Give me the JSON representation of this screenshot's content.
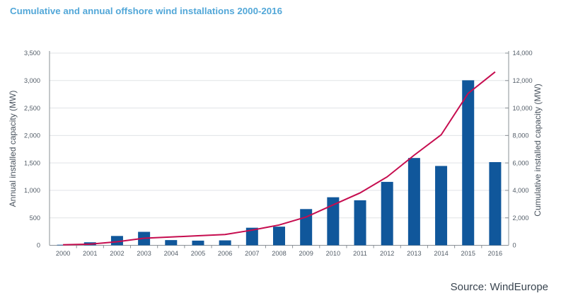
{
  "title": "Cumulative and annual offshore wind installations 2000-2016",
  "source": "Source: WindEurope",
  "colors": {
    "title": "#52a7d8",
    "bar": "#10579b",
    "line": "#c60d4f",
    "text": "#535d68",
    "axis_title_text": "#49535e",
    "grid": "#e0e3e6",
    "axis": "#8a9096",
    "source_text": "#3a4550"
  },
  "chart_data": {
    "type": "bar",
    "categories": [
      "2000",
      "2001",
      "2002",
      "2003",
      "2004",
      "2005",
      "2006",
      "2007",
      "2008",
      "2009",
      "2010",
      "2011",
      "2012",
      "2013",
      "2014",
      "2015",
      "2016"
    ],
    "series": [
      {
        "name": "Annual installed capacity (MW)",
        "type": "bar",
        "axis": "left",
        "values": [
          10,
          55,
          170,
          245,
          95,
          85,
          90,
          320,
          340,
          660,
          875,
          820,
          1155,
          1590,
          1445,
          3005,
          1515
        ]
      },
      {
        "name": "Cumulative installed capacity (MW)",
        "type": "line",
        "axis": "right",
        "values": [
          36,
          86,
          256,
          515,
          605,
          695,
          787,
          1105,
          1479,
          2061,
          2944,
          3818,
          4984,
          6562,
          8045,
          11065,
          12631
        ]
      }
    ],
    "left_axis": {
      "label": "Annual installed capacity (MW)",
      "min": 0,
      "max": 3500,
      "step": 500
    },
    "right_axis": {
      "label": "Cumulative installed capacity (MW)",
      "min": 0,
      "max": 14000,
      "step": 2000
    },
    "grid": true,
    "legend": false
  }
}
